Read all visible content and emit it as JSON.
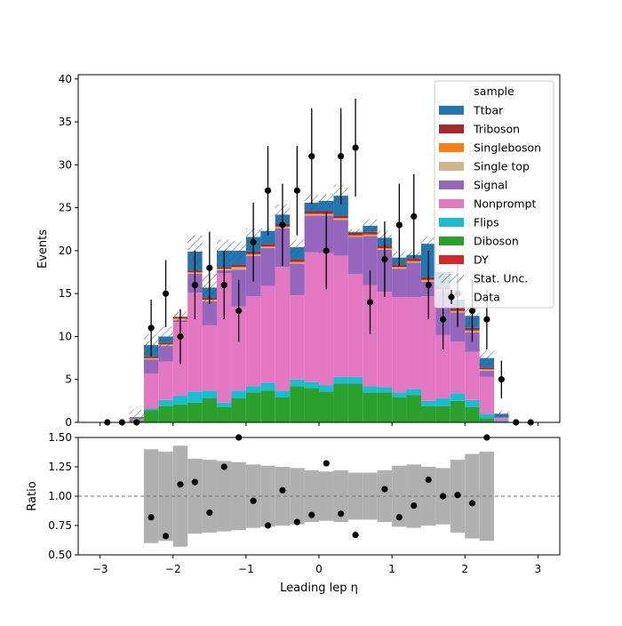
{
  "chart_data": {
    "type": "bar",
    "subtype": "stacked-histogram-with-ratio",
    "xlabel": "Leading lep η",
    "ylabel": "Events",
    "ratio_ylabel": "Ratio",
    "xlim": [
      -3.3,
      3.3
    ],
    "ylim": [
      0,
      40.5
    ],
    "ratio_ylim": [
      0.5,
      1.5
    ],
    "x_ticks": [
      -3,
      -2,
      -1,
      0,
      1,
      2,
      3
    ],
    "x_tick_labels": [
      "−3",
      "−2",
      "−1",
      "0",
      "1",
      "2",
      "3"
    ],
    "y_ticks": [
      0,
      5,
      10,
      15,
      20,
      25,
      30,
      35,
      40
    ],
    "ratio_y_ticks": [
      0.5,
      0.75,
      1.0,
      1.25,
      1.5
    ],
    "ratio_y_tick_labels": [
      "0.50",
      "0.75",
      "1.00",
      "1.25",
      "1.50"
    ],
    "grid": false,
    "legend": {
      "title": "sample",
      "placement": "top-right",
      "entries": [
        "Ttbar",
        "Triboson",
        "Singleboson",
        "Single top",
        "Signal",
        "Nonprompt",
        "Flips",
        "Diboson",
        "DY",
        "Stat. Unc.",
        "Data"
      ]
    },
    "colors": {
      "Ttbar": "#1f77b4",
      "Triboson": "#a52a2a",
      "Singleboson": "#ff7f0e",
      "Single top": "#d2b48c",
      "Signal": "#9467bd",
      "Nonprompt": "#e377c2",
      "Flips": "#17becf",
      "Diboson": "#2ca02c",
      "DY": "#d62728",
      "unc_band": "#b0b0b0"
    },
    "bin_edges": [
      -3.0,
      -2.8,
      -2.6,
      -2.4,
      -2.2,
      -2.0,
      -1.8,
      -1.6,
      -1.4,
      -1.2,
      -1.0,
      -0.8,
      -0.6,
      -0.4,
      -0.2,
      0.0,
      0.2,
      0.4,
      0.6,
      0.8,
      1.0,
      1.2,
      1.4,
      1.6,
      1.8,
      2.0,
      2.2,
      2.4,
      2.6,
      2.8,
      3.0
    ],
    "series": [
      {
        "name": "Diboson",
        "values": [
          0,
          0,
          0.2,
          1.4,
          1.9,
          2.1,
          2.3,
          2.8,
          1.8,
          2.8,
          3.5,
          3.7,
          2.9,
          4.2,
          4.0,
          3.6,
          4.5,
          4.5,
          3.5,
          3.5,
          2.9,
          3.2,
          1.9,
          1.9,
          2.5,
          1.8,
          0.5,
          0.1,
          0,
          0
        ]
      },
      {
        "name": "DY",
        "values": [
          0,
          0,
          0,
          0,
          0,
          0,
          0,
          0,
          0,
          0,
          0,
          0,
          0,
          0,
          0,
          0,
          0,
          0,
          0,
          0,
          0,
          0,
          0,
          0,
          0,
          0,
          0,
          0,
          0,
          0
        ]
      },
      {
        "name": "Flips",
        "values": [
          0,
          0,
          0,
          0.2,
          0.7,
          1.0,
          1.3,
          0.9,
          0.5,
          0.9,
          0.7,
          0.9,
          0.8,
          0.8,
          0.7,
          0.7,
          0.8,
          0.8,
          0.7,
          0.6,
          0.6,
          0.7,
          0.6,
          0.9,
          0.9,
          0.8,
          0.5,
          0.1,
          0,
          0
        ]
      },
      {
        "name": "Nonprompt",
        "values": [
          0,
          0,
          0.2,
          4.1,
          4.5,
          8.6,
          11.5,
          7.6,
          15.1,
          9.8,
          10.5,
          11.3,
          14.4,
          9.8,
          15.1,
          15.4,
          14.1,
          12.0,
          11.8,
          11.1,
          11.1,
          10.7,
          12.2,
          7.4,
          6.0,
          5.6,
          4.3,
          0.3,
          0,
          0
        ]
      },
      {
        "name": "Signal",
        "values": [
          0,
          0,
          0.1,
          1.6,
          1.8,
          0.2,
          2.2,
          2.8,
          0.3,
          4.3,
          4.7,
          4.4,
          4.5,
          3.7,
          4.3,
          4.4,
          4.2,
          4.3,
          5.7,
          4.9,
          3.3,
          4.0,
          1.7,
          5.1,
          3.4,
          2.3,
          0.7,
          0.1,
          0,
          0
        ]
      },
      {
        "name": "Single top",
        "values": [
          0,
          0,
          0,
          0.1,
          0.1,
          0.1,
          0.1,
          0.1,
          0.1,
          0.2,
          0.1,
          0.1,
          0.1,
          0.1,
          0.1,
          0.1,
          0.1,
          0.1,
          0.1,
          0.1,
          0.1,
          0.1,
          0.1,
          0.1,
          0.1,
          0.1,
          0.1,
          0,
          0,
          0
        ]
      },
      {
        "name": "Singleboson",
        "values": [
          0,
          0,
          0,
          0.1,
          0.1,
          0.1,
          0.1,
          0.1,
          0.1,
          0.1,
          0.1,
          0.1,
          0.1,
          0.1,
          0.1,
          0.1,
          0.1,
          0.1,
          0.1,
          0.1,
          0.1,
          0.1,
          0.1,
          0.1,
          0.1,
          0.1,
          0.1,
          0,
          0,
          0
        ]
      },
      {
        "name": "Triboson",
        "values": [
          0,
          0,
          0,
          0.2,
          0.2,
          0.2,
          0.2,
          0.2,
          0.2,
          0.3,
          0.3,
          0.3,
          0.3,
          0.3,
          0.3,
          0.3,
          0.3,
          0.3,
          0.3,
          0.3,
          0.3,
          0.3,
          0.3,
          0.3,
          0.3,
          0.3,
          0.2,
          0,
          0,
          0
        ]
      },
      {
        "name": "Ttbar",
        "values": [
          0,
          0,
          0.1,
          1.3,
          0.7,
          0,
          2.2,
          1.2,
          1.9,
          1.6,
          1.7,
          1.5,
          1.1,
          1.4,
          1.0,
          1.2,
          2.3,
          0.1,
          0.7,
          0.9,
          0.8,
          0.4,
          3.9,
          1.7,
          1.0,
          1.4,
          1.1,
          0.4,
          0,
          0
        ]
      }
    ],
    "stat_unc": [
      0,
      0,
      0.9,
      1.3,
      1.2,
      0.6,
      1.9,
      1.6,
      1.3,
      1.1,
      1.0,
      0.3,
      1.2,
      0.9,
      0.9,
      0.8,
      1.3,
      0.3,
      0.8,
      0.8,
      0.7,
      0.4,
      0.9,
      1.5,
      1.2,
      1.4,
      0.9,
      0.3,
      0,
      0
    ],
    "data": {
      "x": [
        -2.9,
        -2.7,
        -2.5,
        -2.3,
        -2.1,
        -1.9,
        -1.7,
        -1.5,
        -1.3,
        -1.1,
        -0.9,
        -0.7,
        -0.5,
        -0.3,
        -0.1,
        0.1,
        0.3,
        0.5,
        0.7,
        0.9,
        1.1,
        1.3,
        1.5,
        1.7,
        1.9,
        2.1,
        2.3,
        2.5,
        2.7,
        2.9
      ],
      "y": [
        0,
        0,
        0,
        11,
        15,
        10,
        16,
        18,
        16,
        13,
        21,
        27,
        23,
        27,
        31,
        20,
        31,
        32,
        14,
        19,
        23,
        24,
        16,
        12,
        15,
        13,
        12,
        5,
        0,
        0
      ],
      "yerr": [
        0,
        0,
        0,
        3.3,
        3.9,
        3.2,
        4.0,
        4.2,
        4.0,
        3.6,
        4.6,
        5.2,
        4.8,
        5.2,
        5.6,
        4.5,
        5.6,
        5.7,
        3.7,
        4.4,
        4.8,
        4.9,
        4.0,
        3.5,
        3.9,
        3.6,
        3.5,
        2.2,
        0,
        0
      ]
    },
    "ratio": {
      "x": [
        -2.3,
        -2.1,
        -1.9,
        -1.7,
        -1.5,
        -1.3,
        -1.1,
        -0.9,
        -0.7,
        -0.5,
        -0.3,
        -0.1,
        0.1,
        0.3,
        0.5,
        0.9,
        1.1,
        1.3,
        1.5,
        1.7,
        1.9,
        2.1,
        2.3
      ],
      "y": [
        0.82,
        0.66,
        1.1,
        1.12,
        0.86,
        1.25,
        1.5,
        0.96,
        0.75,
        1.05,
        0.78,
        0.84,
        1.28,
        0.85,
        0.67,
        1.06,
        0.82,
        0.92,
        1.14,
        1.0,
        1.01,
        0.94,
        1.5
      ]
    },
    "ratio_band": {
      "bins": [
        -2.4,
        2.2
      ],
      "up": [
        1.4,
        1.38,
        1.43,
        1.32,
        1.31,
        1.3,
        1.29,
        1.27,
        1.26,
        1.25,
        1.24,
        1.22,
        1.21,
        1.22,
        1.2,
        1.2,
        1.22,
        1.26,
        1.27,
        1.25,
        1.24,
        1.31,
        1.36,
        1.38
      ]
    },
    "reference_line": 1.0
  }
}
